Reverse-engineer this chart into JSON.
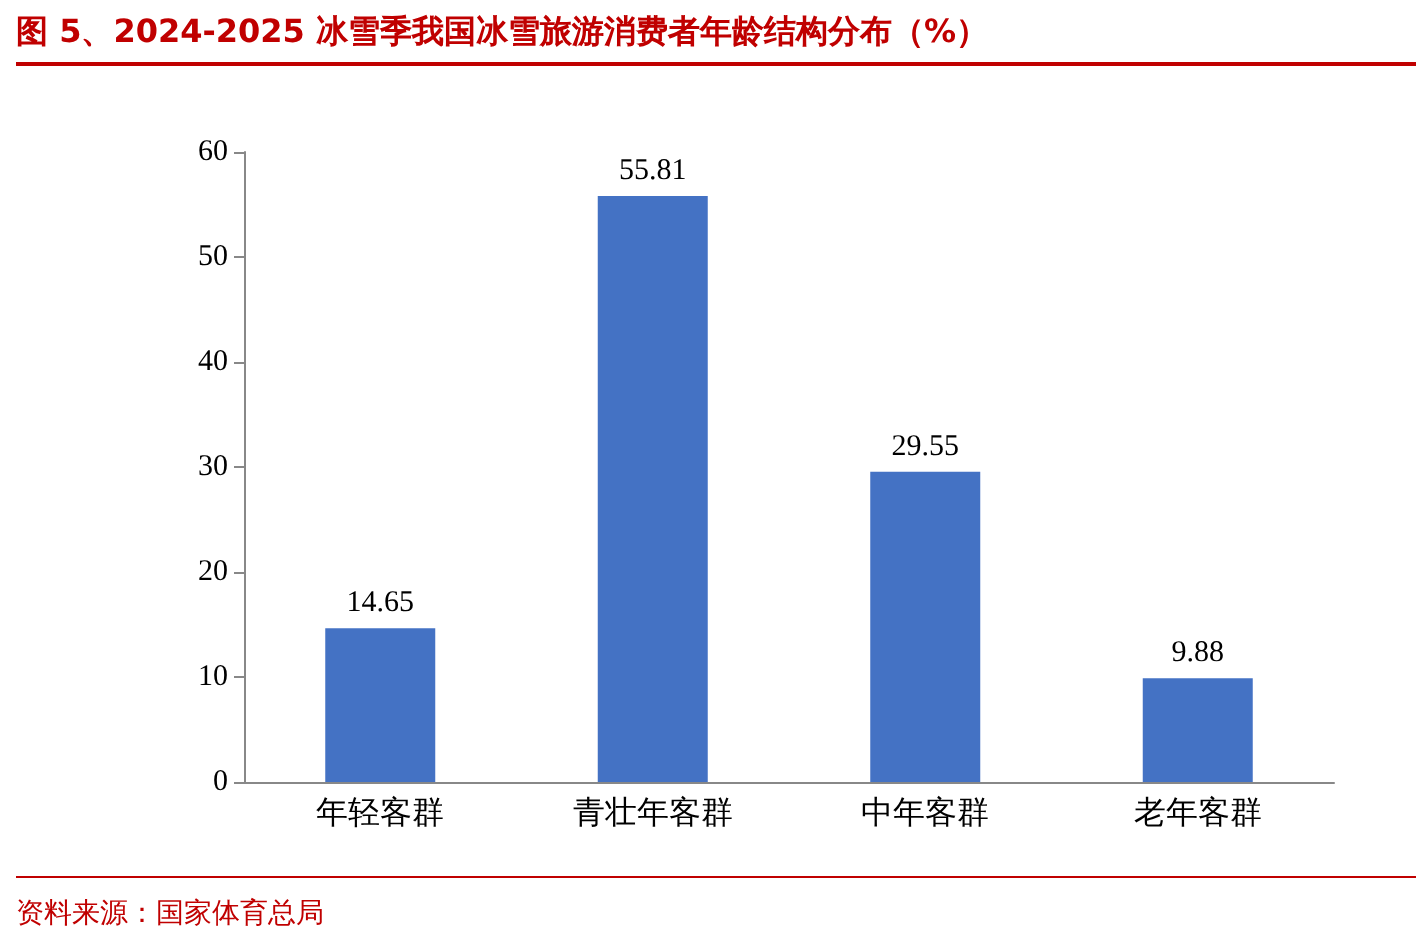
{
  "chart_data": {
    "type": "bar",
    "title": "图 5、2024-2025 冰雪季我国冰雪旅游消费者年龄结构分布（%）",
    "categories": [
      "年轻客群",
      "青壮年客群",
      "中年客群",
      "老年客群"
    ],
    "values": [
      14.65,
      55.81,
      29.55,
      9.88
    ],
    "color": "#4472c4",
    "ylim": [
      0,
      60
    ],
    "yticks": [
      0,
      10,
      20,
      30,
      40,
      50,
      60
    ],
    "grid": false,
    "data_labels": true,
    "annotations": [
      "资料来源：国家体育总局"
    ]
  }
}
